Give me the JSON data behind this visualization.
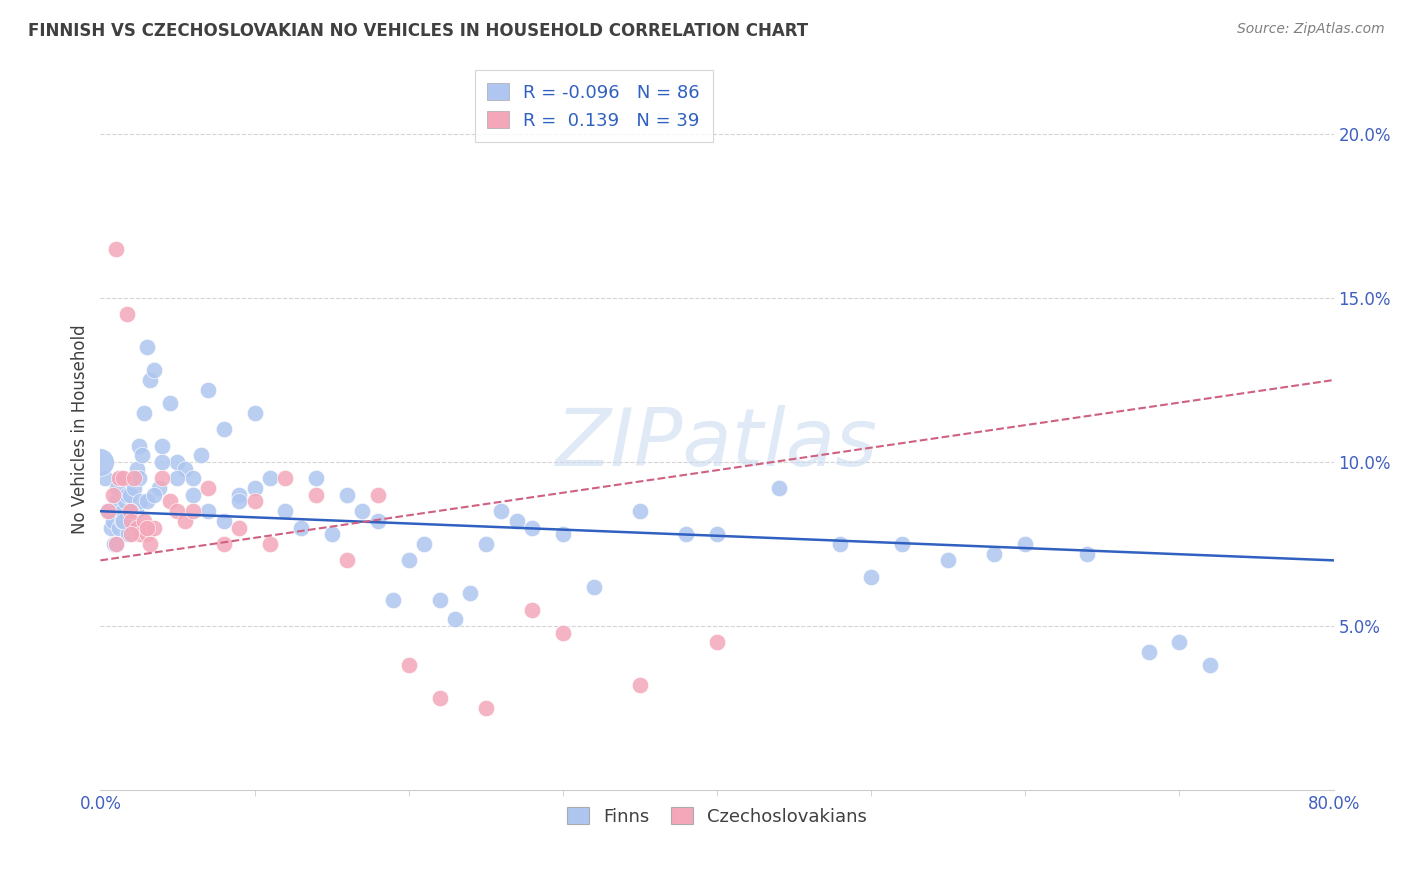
{
  "title": "FINNISH VS CZECHOSLOVAKIAN NO VEHICLES IN HOUSEHOLD CORRELATION CHART",
  "source": "Source: ZipAtlas.com",
  "ylabel": "No Vehicles in Household",
  "watermark": "ZIPatlas",
  "xlim": [
    0.0,
    80.0
  ],
  "ylim": [
    0.0,
    22.0
  ],
  "ytick_positions": [
    5.0,
    10.0,
    15.0,
    20.0
  ],
  "ytick_labels": [
    "5.0%",
    "10.0%",
    "15.0%",
    "20.0%"
  ],
  "finn_color": "#aec6f0",
  "finn_line_color": "#3060c0",
  "czech_color": "#f4a7b9",
  "czech_line_color": "#d06080",
  "background_color": "#ffffff",
  "grid_color": "#d0d0d0",
  "title_color": "#404040",
  "tick_color": "#4060c0",
  "axis_label_color": "#404040",
  "finn_x": [
    0.3,
    0.5,
    0.7,
    0.8,
    0.9,
    1.0,
    1.1,
    1.2,
    1.3,
    1.4,
    1.5,
    1.6,
    1.7,
    1.8,
    1.9,
    2.0,
    2.1,
    2.2,
    2.3,
    2.4,
    2.5,
    2.6,
    2.7,
    2.8,
    3.0,
    3.2,
    3.5,
    3.8,
    4.0,
    4.5,
    5.0,
    5.5,
    6.0,
    6.5,
    7.0,
    8.0,
    9.0,
    10.0,
    11.0,
    12.0,
    13.0,
    14.0,
    15.0,
    16.0,
    17.0,
    18.0,
    19.0,
    20.0,
    21.0,
    22.0,
    23.0,
    24.0,
    25.0,
    26.0,
    27.0,
    28.0,
    30.0,
    32.0,
    35.0,
    38.0,
    40.0,
    44.0,
    48.0,
    50.0,
    52.0,
    55.0,
    58.0,
    60.0,
    64.0,
    68.0,
    70.0,
    72.0,
    1.0,
    1.5,
    2.0,
    2.5,
    3.0,
    3.5,
    4.0,
    5.0,
    6.0,
    7.0,
    8.0,
    9.0,
    10.0
  ],
  "finn_y": [
    9.5,
    8.5,
    8.0,
    8.2,
    7.5,
    8.8,
    9.2,
    8.0,
    9.5,
    8.2,
    8.5,
    8.8,
    9.0,
    7.8,
    9.0,
    8.5,
    8.0,
    9.2,
    8.5,
    9.8,
    10.5,
    8.8,
    10.2,
    11.5,
    13.5,
    12.5,
    12.8,
    9.2,
    10.5,
    11.8,
    10.0,
    9.8,
    9.5,
    10.2,
    12.2,
    11.0,
    9.0,
    11.5,
    9.5,
    8.5,
    8.0,
    9.5,
    7.8,
    9.0,
    8.5,
    8.2,
    5.8,
    7.0,
    7.5,
    5.8,
    5.2,
    6.0,
    7.5,
    8.5,
    8.2,
    8.0,
    7.8,
    6.2,
    8.5,
    7.8,
    7.8,
    9.2,
    7.5,
    6.5,
    7.5,
    7.0,
    7.2,
    7.5,
    7.2,
    4.2,
    4.5,
    3.8,
    7.5,
    8.2,
    8.5,
    9.5,
    8.8,
    9.0,
    10.0,
    9.5,
    9.0,
    8.5,
    8.2,
    8.8,
    9.2
  ],
  "czech_x": [
    0.5,
    0.8,
    1.0,
    1.2,
    1.5,
    1.7,
    1.9,
    2.0,
    2.2,
    2.4,
    2.6,
    2.8,
    3.0,
    3.2,
    3.5,
    4.0,
    4.5,
    5.0,
    5.5,
    6.0,
    7.0,
    8.0,
    9.0,
    10.0,
    11.0,
    12.0,
    14.0,
    16.0,
    18.0,
    20.0,
    22.0,
    25.0,
    28.0,
    30.0,
    35.0,
    40.0,
    1.0,
    2.0,
    3.0
  ],
  "czech_y": [
    8.5,
    9.0,
    16.5,
    9.5,
    9.5,
    14.5,
    8.5,
    8.2,
    9.5,
    8.0,
    7.8,
    8.2,
    7.8,
    7.5,
    8.0,
    9.5,
    8.8,
    8.5,
    8.2,
    8.5,
    9.2,
    7.5,
    8.0,
    8.8,
    7.5,
    9.5,
    9.0,
    7.0,
    9.0,
    3.8,
    2.8,
    2.5,
    5.5,
    4.8,
    3.2,
    4.5,
    7.5,
    7.8,
    8.0
  ],
  "finn_line_x0": 0.0,
  "finn_line_x1": 80.0,
  "finn_line_y0": 8.5,
  "finn_line_y1": 7.0,
  "czech_line_x0": 0.0,
  "czech_line_x1": 80.0,
  "czech_line_y0": 7.0,
  "czech_line_y1": 12.5
}
